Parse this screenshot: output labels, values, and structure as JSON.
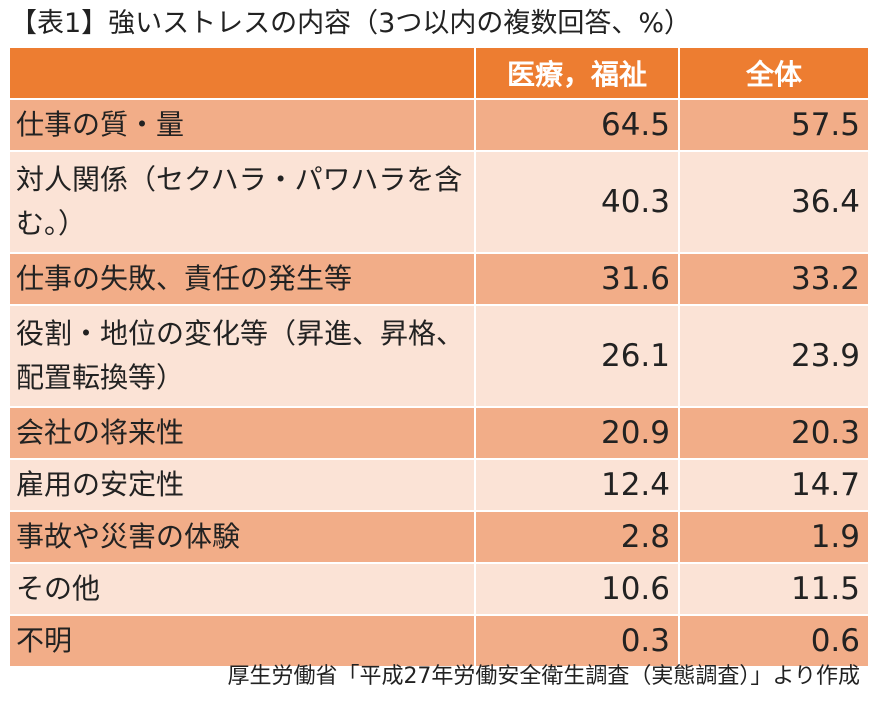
{
  "chart_data": {
    "type": "table",
    "title": "【表1】強いストレスの内容（3つ以内の複数回答、%）",
    "columns": [
      "",
      "医療，福祉",
      "全体"
    ],
    "rows": [
      {
        "label": "仕事の質・量",
        "medical_welfare": "64.5",
        "total": "57.5"
      },
      {
        "label": "対人関係（セクハラ・パワハラを含む。）",
        "medical_welfare": "40.3",
        "total": "36.4"
      },
      {
        "label": "仕事の失敗、責任の発生等",
        "medical_welfare": "31.6",
        "total": "33.2"
      },
      {
        "label": "役割・地位の変化等（昇進、昇格、配置転換等）",
        "medical_welfare": "26.1",
        "total": "23.9"
      },
      {
        "label": "会社の将来性",
        "medical_welfare": "20.9",
        "total": "20.3"
      },
      {
        "label": "雇用の安定性",
        "medical_welfare": "12.4",
        "total": "14.7"
      },
      {
        "label": "事故や災害の体験",
        "medical_welfare": "2.8",
        "total": "1.9"
      },
      {
        "label": "その他",
        "medical_welfare": "10.6",
        "total": "11.5"
      },
      {
        "label": "不明",
        "medical_welfare": "0.3",
        "total": "0.6"
      }
    ],
    "source": "厚生労働省「平成27年労働安全衛生調査（実態調査）」より作成"
  },
  "colors": {
    "header": "#ed7d31",
    "row_dark": "#f2ad88",
    "row_light": "#fbe3d6"
  }
}
